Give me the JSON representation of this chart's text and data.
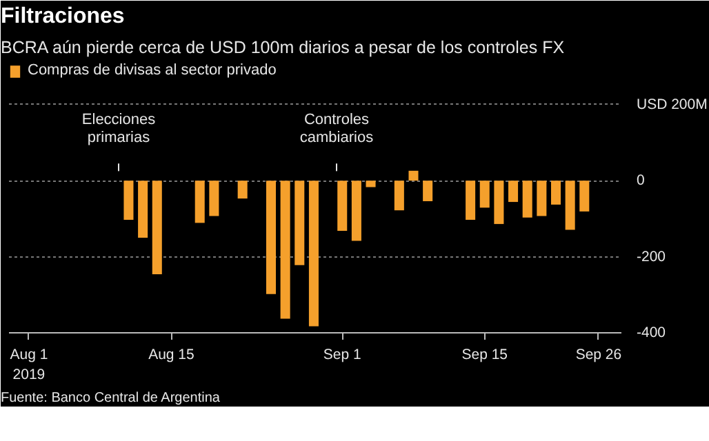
{
  "chart_data": {
    "type": "bar",
    "title": "Filtraciones",
    "subtitle": "BCRA aún pierde cerca de USD 100m diarios a pesar de los controles FX",
    "categories": [
      "Aug 1\n2019",
      null,
      null,
      null,
      null,
      null,
      null,
      null,
      null,
      null,
      "Aug 15",
      null,
      null,
      null,
      null,
      null,
      null,
      null,
      null,
      null,
      null,
      null,
      "Sep 1",
      null,
      null,
      null,
      null,
      null,
      null,
      null,
      null,
      null,
      "Sep 15",
      null,
      null,
      null,
      null,
      null,
      null,
      null,
      "Sep 26"
    ],
    "series": [
      {
        "name": "Compras de divisas al sector privado",
        "color": "#f5a02c",
        "values": [
          0,
          0,
          0,
          0,
          0,
          0,
          0,
          -103,
          -150,
          -246,
          0,
          0,
          -111,
          -93,
          0,
          -47,
          0,
          -298,
          -363,
          -222,
          -383,
          0,
          -132,
          -158,
          -17,
          0,
          -78,
          26,
          -54,
          0,
          0,
          -103,
          -71,
          -114,
          -56,
          -97,
          -93,
          -63,
          -129,
          -81,
          0
        ]
      }
    ],
    "ylim": [
      -400,
      310
    ],
    "yticks": [
      {
        "value": 200,
        "label": "USD 200M"
      },
      0,
      -200,
      -400
    ],
    "grid": "y",
    "legend": "top left",
    "annotations": [
      "Elecciones primarias",
      "Controles cambiarios",
      "Fuente: Banco Central de Argentina"
    ]
  }
}
